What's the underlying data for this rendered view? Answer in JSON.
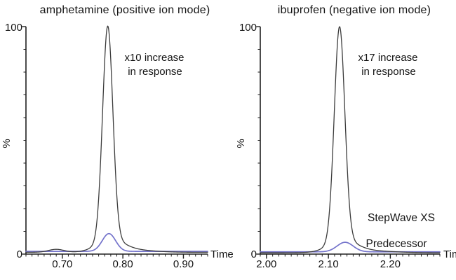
{
  "figure": {
    "background": "#ffffff",
    "title_color": "#9CA920",
    "axis_color": "#1f1f1f",
    "text_color": "#141414"
  },
  "chart_data": [
    {
      "type": "line",
      "title": "amphetamine (positive ion mode)",
      "xlabel": "Time",
      "ylabel": "%",
      "x_range": [
        0.64,
        0.94
      ],
      "y_range": [
        0,
        100
      ],
      "x_ticks": {
        "major": [
          0.7,
          0.8,
          0.9
        ],
        "labels": [
          "0.70",
          "0.80",
          "0.90"
        ],
        "minor_step": 0.01
      },
      "y_ticks": {
        "major": [
          0,
          100
        ],
        "labels": [
          "0",
          "100"
        ],
        "minor_step": 10
      },
      "annotation": {
        "line1": "x10 increase",
        "line2": "in response"
      },
      "grid": false,
      "series": [
        {
          "name": "StepWave XS",
          "color": "#3C3C3C",
          "baseline": 0.8,
          "peak_summary": "main peak at 0.775 min, 100% response",
          "peaks": [
            {
              "center": 0.69,
              "height": 1.3,
              "sigma": 0.013
            },
            {
              "center": 0.775,
              "height": 94.0,
              "sigma": 0.0085
            },
            {
              "center": 0.779,
              "height": 5.0,
              "sigma": 0.022
            },
            {
              "center": 0.815,
              "height": 1.0,
              "sigma": 0.035
            }
          ]
        },
        {
          "name": "Predecessor",
          "color": "#7473CB",
          "baseline": 1.2,
          "peak_summary": "main peak at 0.777 min, ~10% response (10x lower)",
          "peaks": [
            {
              "center": 0.777,
              "height": 7.8,
              "sigma": 0.011
            }
          ]
        }
      ]
    },
    {
      "type": "line",
      "title": "ibuprofen (negative ion mode)",
      "xlabel": "Time",
      "ylabel": "%",
      "x_range": [
        1.99,
        2.28
      ],
      "y_range": [
        0,
        100
      ],
      "x_ticks": {
        "major": [
          2.0,
          2.1,
          2.2
        ],
        "labels": [
          "2.00",
          "2.10",
          "2.20"
        ],
        "minor_step": 0.01
      },
      "y_ticks": {
        "major": [
          0,
          100
        ],
        "labels": [
          "0",
          "100"
        ],
        "minor_step": 10
      },
      "annotation": {
        "line1": "x17 increase",
        "line2": "in response"
      },
      "legend": {
        "stepwave_color": "#1a1a1a",
        "predecessor_color": "#2E64CC"
      },
      "grid": false,
      "series": [
        {
          "name": "StepWave XS",
          "color": "#3C3C3C",
          "baseline": 0.6,
          "peak_summary": "main peak at 2.118 min, 100% response",
          "peaks": [
            {
              "center": 2.118,
              "height": 94.0,
              "sigma": 0.0085
            },
            {
              "center": 2.123,
              "height": 5.0,
              "sigma": 0.022
            },
            {
              "center": 2.16,
              "height": 0.9,
              "sigma": 0.04
            }
          ]
        },
        {
          "name": "Predecessor",
          "color": "#7473CB",
          "baseline": 1.0,
          "peak_summary": "main peak at 2.127 min, ~6% response (17x lower)",
          "peaks": [
            {
              "center": 2.127,
              "height": 4.2,
              "sigma": 0.013
            }
          ]
        }
      ]
    }
  ]
}
